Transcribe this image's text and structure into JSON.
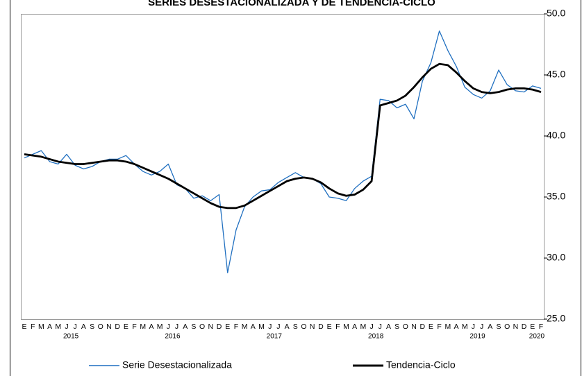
{
  "chart_data": {
    "type": "line",
    "title": "SERIES DESESTACIONALIZADA Y DE TENDENCIA-CICLO",
    "categories": [
      "E",
      "F",
      "M",
      "A",
      "M",
      "J",
      "J",
      "A",
      "S",
      "O",
      "N",
      "D",
      "E",
      "F",
      "M",
      "A",
      "M",
      "J",
      "J",
      "A",
      "S",
      "O",
      "N",
      "D",
      "E",
      "F",
      "M",
      "A",
      "M",
      "J",
      "J",
      "A",
      "S",
      "O",
      "N",
      "D",
      "E",
      "F",
      "M",
      "A",
      "M",
      "J",
      "J",
      "A",
      "S",
      "O",
      "N",
      "D",
      "E",
      "F",
      "M",
      "A",
      "M",
      "J",
      "J",
      "A",
      "S",
      "O",
      "N",
      "D",
      "E",
      "F"
    ],
    "years": [
      "2015",
      "2016",
      "2017",
      "2018",
      "2019",
      "2020"
    ],
    "series": [
      {
        "name": "Serie Desestacionalizada",
        "color": "#1f6fc0",
        "values": [
          38.2,
          38.5,
          38.8,
          37.9,
          37.7,
          38.5,
          37.6,
          37.3,
          37.5,
          37.9,
          38.1,
          38.1,
          38.4,
          37.7,
          37.1,
          36.8,
          37.1,
          37.7,
          36.0,
          35.7,
          34.9,
          35.1,
          34.7,
          35.2,
          28.8,
          32.3,
          34.2,
          35.0,
          35.5,
          35.6,
          36.2,
          36.6,
          37.0,
          36.6,
          36.5,
          36.1,
          35.0,
          34.9,
          34.7,
          35.7,
          36.3,
          36.7,
          43.0,
          42.9,
          42.3,
          42.6,
          41.4,
          44.5,
          46.0,
          48.6,
          47.0,
          45.7,
          44.0,
          43.4,
          43.1,
          43.7,
          45.4,
          44.2,
          43.7,
          43.6,
          44.1,
          43.9
        ]
      },
      {
        "name": "Tendencia-Ciclo",
        "color": "#000000",
        "values": [
          38.5,
          38.4,
          38.3,
          38.1,
          37.9,
          37.8,
          37.7,
          37.7,
          37.8,
          37.9,
          38.0,
          38.0,
          37.9,
          37.7,
          37.4,
          37.1,
          36.8,
          36.5,
          36.1,
          35.7,
          35.3,
          34.9,
          34.5,
          34.2,
          34.1,
          34.1,
          34.3,
          34.7,
          35.1,
          35.5,
          35.9,
          36.3,
          36.5,
          36.6,
          36.5,
          36.2,
          35.7,
          35.3,
          35.1,
          35.2,
          35.6,
          36.3,
          42.5,
          42.7,
          42.9,
          43.3,
          44.0,
          44.8,
          45.5,
          45.9,
          45.8,
          45.2,
          44.5,
          43.9,
          43.6,
          43.5,
          43.6,
          43.8,
          43.9,
          43.9,
          43.8,
          43.6
        ]
      }
    ],
    "ylim": [
      25,
      50
    ],
    "yticks": [
      {
        "value": 25,
        "label": "25.0"
      },
      {
        "value": 30,
        "label": "30.0"
      },
      {
        "value": 35,
        "label": "35.0"
      },
      {
        "value": 40,
        "label": "40.0"
      },
      {
        "value": 45,
        "label": "45.0"
      },
      {
        "value": 50,
        "label": "50.0"
      }
    ],
    "legend": "bottom"
  }
}
